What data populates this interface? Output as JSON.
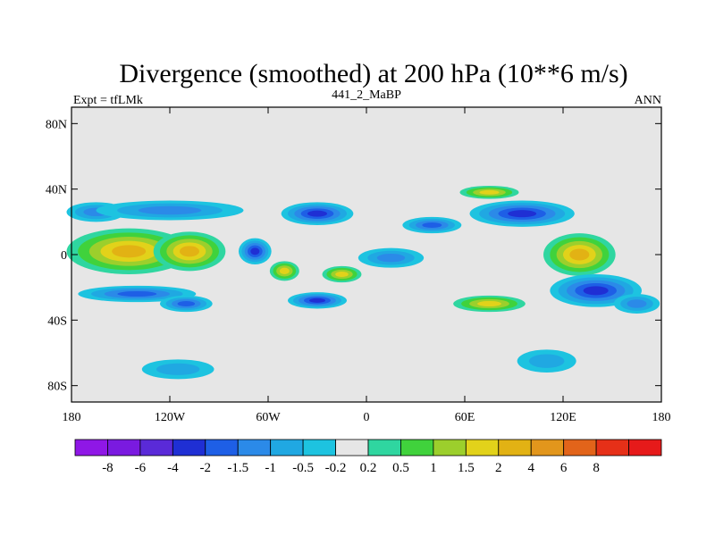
{
  "chart_data": {
    "type": "heatmap",
    "title": "Divergence (smoothed) at 200 hPa (10**6 m/s)",
    "left_label": "Expt = tfLMk",
    "center_label": "441_2_MaBP",
    "right_label": "ANN",
    "xlim": [
      -180,
      180
    ],
    "ylim": [
      -90,
      90
    ],
    "x_ticks": [
      {
        "value": -180,
        "label": "180"
      },
      {
        "value": -120,
        "label": "120W"
      },
      {
        "value": -60,
        "label": "60W"
      },
      {
        "value": 0,
        "label": "0"
      },
      {
        "value": 60,
        "label": "60E"
      },
      {
        "value": 120,
        "label": "120E"
      },
      {
        "value": 180,
        "label": "180"
      }
    ],
    "y_ticks": [
      {
        "value": 80,
        "label": "80N"
      },
      {
        "value": 40,
        "label": "40N"
      },
      {
        "value": 0,
        "label": "0"
      },
      {
        "value": -40,
        "label": "40S"
      },
      {
        "value": -80,
        "label": "80S"
      }
    ],
    "colorbar": {
      "colors": [
        "#8f17e6",
        "#7a1ae0",
        "#5a2ad8",
        "#1f2fd4",
        "#1e5fe6",
        "#2b8ae8",
        "#20a8e2",
        "#1dc3e0",
        "#e6e6e6",
        "#2fd6a0",
        "#40d23c",
        "#9ccf2c",
        "#e2d21a",
        "#e2b214",
        "#e2961c",
        "#e2641a",
        "#e63018",
        "#e61a1a"
      ],
      "labels": [
        "-8",
        "-6",
        "-4",
        "-2",
        "-1.5",
        "-1",
        "-0.5",
        "-0.2",
        "0.2",
        "0.5",
        "1",
        "1.5",
        "2",
        "4",
        "6",
        "8"
      ]
    },
    "field_blobs": [
      {
        "lon": -145,
        "lat": 2,
        "rx": 38,
        "ry": 14,
        "value": 3
      },
      {
        "lon": -108,
        "lat": 2,
        "rx": 22,
        "ry": 12,
        "value": 3
      },
      {
        "lon": -165,
        "lat": 26,
        "rx": 18,
        "ry": 6,
        "value": -1.2
      },
      {
        "lon": -120,
        "lat": 27,
        "rx": 45,
        "ry": 6,
        "value": -1.2
      },
      {
        "lon": -140,
        "lat": -24,
        "rx": 36,
        "ry": 5,
        "value": -1.8
      },
      {
        "lon": -110,
        "lat": -30,
        "rx": 16,
        "ry": 5,
        "value": -1.5
      },
      {
        "lon": -30,
        "lat": 25,
        "rx": 22,
        "ry": 7,
        "value": -2.5
      },
      {
        "lon": -68,
        "lat": 2,
        "rx": 10,
        "ry": 8,
        "value": -2.5
      },
      {
        "lon": -30,
        "lat": -28,
        "rx": 18,
        "ry": 5,
        "value": -2
      },
      {
        "lon": -50,
        "lat": -10,
        "rx": 9,
        "ry": 6,
        "value": 1.8
      },
      {
        "lon": -15,
        "lat": -12,
        "rx": 12,
        "ry": 5,
        "value": 1.8
      },
      {
        "lon": 15,
        "lat": -2,
        "rx": 20,
        "ry": 6,
        "value": -1.3
      },
      {
        "lon": 40,
        "lat": 18,
        "rx": 18,
        "ry": 5,
        "value": -1.5
      },
      {
        "lon": 75,
        "lat": 38,
        "rx": 18,
        "ry": 4,
        "value": 1.6
      },
      {
        "lon": 95,
        "lat": 25,
        "rx": 32,
        "ry": 8,
        "value": -3
      },
      {
        "lon": 75,
        "lat": -30,
        "rx": 22,
        "ry": 5,
        "value": 1.8
      },
      {
        "lon": 130,
        "lat": 0,
        "rx": 22,
        "ry": 13,
        "value": 3
      },
      {
        "lon": 140,
        "lat": -22,
        "rx": 28,
        "ry": 10,
        "value": -3
      },
      {
        "lon": 165,
        "lat": -30,
        "rx": 14,
        "ry": 6,
        "value": -1.2
      },
      {
        "lon": 110,
        "lat": -65,
        "rx": 18,
        "ry": 7,
        "value": -0.6
      },
      {
        "lon": -115,
        "lat": -70,
        "rx": 22,
        "ry": 6,
        "value": -0.6
      }
    ]
  }
}
